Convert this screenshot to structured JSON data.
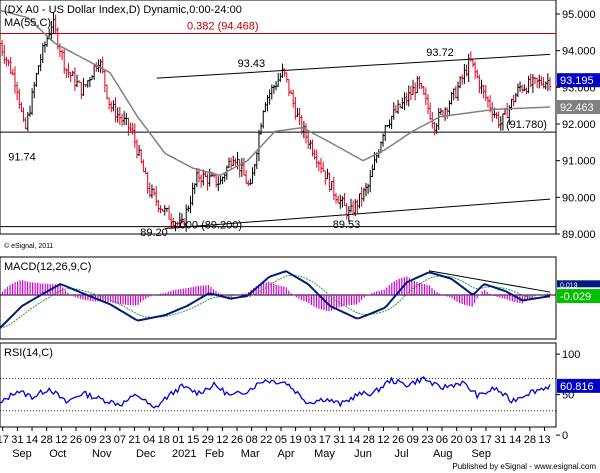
{
  "chart_data": [
    {
      "type": "candlestick",
      "panel": "price",
      "title": "(DX A0 - US Dollar Index,D) Dynamic,0:00-24:00",
      "indicator_label": "MA(55,C)",
      "watermark": "© eSignal, 2011",
      "ylim": [
        89.0,
        95.3
      ],
      "y_ticks": [
        "95.000",
        "94.000",
        "93.000",
        "92.000",
        "91.000",
        "90.000",
        "89.000"
      ],
      "last_price": "93.195",
      "ma_value": "92.463",
      "fib_label": "0.382 (94.468)",
      "fib_level": 94.468,
      "support_label": "(91.780)",
      "support_level": 91.78,
      "base_label": "0.000 (89.200)",
      "base_level": 89.2,
      "annotations": [
        {
          "text": "93.43",
          "x": 0.457,
          "y": 93.55
        },
        {
          "text": "93.72",
          "x": 0.8,
          "y": 93.85
        },
        {
          "text": "91.74",
          "x": 0.04,
          "y": 91.0
        },
        {
          "text": "89.20",
          "x": 0.28,
          "y": 88.95
        },
        {
          "text": "89.53",
          "x": 0.63,
          "y": 89.17
        }
      ],
      "keypoints": [
        {
          "x": 0.0,
          "y": 94.2
        },
        {
          "x": 0.03,
          "y": 93.1
        },
        {
          "x": 0.045,
          "y": 91.74
        },
        {
          "x": 0.07,
          "y": 93.6
        },
        {
          "x": 0.095,
          "y": 94.8
        },
        {
          "x": 0.12,
          "y": 93.5
        },
        {
          "x": 0.15,
          "y": 92.9
        },
        {
          "x": 0.18,
          "y": 93.8
        },
        {
          "x": 0.2,
          "y": 92.5
        },
        {
          "x": 0.24,
          "y": 91.8
        },
        {
          "x": 0.27,
          "y": 90.2
        },
        {
          "x": 0.3,
          "y": 89.6
        },
        {
          "x": 0.33,
          "y": 89.2
        },
        {
          "x": 0.36,
          "y": 90.6
        },
        {
          "x": 0.4,
          "y": 90.4
        },
        {
          "x": 0.425,
          "y": 91.2
        },
        {
          "x": 0.455,
          "y": 90.2
        },
        {
          "x": 0.48,
          "y": 92.6
        },
        {
          "x": 0.515,
          "y": 93.43
        },
        {
          "x": 0.545,
          "y": 92.0
        },
        {
          "x": 0.58,
          "y": 91.0
        },
        {
          "x": 0.605,
          "y": 90.2
        },
        {
          "x": 0.635,
          "y": 89.53
        },
        {
          "x": 0.67,
          "y": 90.3
        },
        {
          "x": 0.7,
          "y": 92.0
        },
        {
          "x": 0.73,
          "y": 92.5
        },
        {
          "x": 0.76,
          "y": 93.1
        },
        {
          "x": 0.79,
          "y": 92.0
        },
        {
          "x": 0.83,
          "y": 92.9
        },
        {
          "x": 0.855,
          "y": 93.72
        },
        {
          "x": 0.88,
          "y": 92.8
        },
        {
          "x": 0.91,
          "y": 92.0
        },
        {
          "x": 0.945,
          "y": 93.0
        },
        {
          "x": 1.0,
          "y": 93.195
        }
      ],
      "ma_keypoints": [
        {
          "x": 0.0,
          "y": 95.1
        },
        {
          "x": 0.05,
          "y": 94.9
        },
        {
          "x": 0.1,
          "y": 94.2
        },
        {
          "x": 0.2,
          "y": 93.4
        },
        {
          "x": 0.25,
          "y": 92.2
        },
        {
          "x": 0.3,
          "y": 91.2
        },
        {
          "x": 0.35,
          "y": 90.8
        },
        {
          "x": 0.4,
          "y": 90.6
        },
        {
          "x": 0.45,
          "y": 91.0
        },
        {
          "x": 0.5,
          "y": 91.8
        },
        {
          "x": 0.55,
          "y": 91.9
        },
        {
          "x": 0.6,
          "y": 91.5
        },
        {
          "x": 0.66,
          "y": 91.0
        },
        {
          "x": 0.7,
          "y": 91.3
        },
        {
          "x": 0.75,
          "y": 91.8
        },
        {
          "x": 0.8,
          "y": 92.2
        },
        {
          "x": 0.85,
          "y": 92.3
        },
        {
          "x": 0.9,
          "y": 92.4
        },
        {
          "x": 1.0,
          "y": 92.463
        }
      ],
      "trendlines": [
        {
          "x1": 0.285,
          "y1": 93.25,
          "x2": 1.0,
          "y2": 93.9
        },
        {
          "x1": 0.3,
          "y1": 89.15,
          "x2": 1.0,
          "y2": 89.95
        }
      ]
    },
    {
      "type": "line",
      "panel": "macd",
      "title": "MACD(12,26,9,C)",
      "ylim": [
        -1.2,
        0.9
      ],
      "last_value": "-0.029",
      "signal_value": "0.019",
      "zero_line": 0,
      "keypoints": [
        {
          "x": 0.0,
          "y": -0.9
        },
        {
          "x": 0.04,
          "y": -0.3
        },
        {
          "x": 0.08,
          "y": 0.05
        },
        {
          "x": 0.11,
          "y": 0.3
        },
        {
          "x": 0.15,
          "y": 0.05
        },
        {
          "x": 0.2,
          "y": -0.25
        },
        {
          "x": 0.25,
          "y": -0.7
        },
        {
          "x": 0.3,
          "y": -0.55
        },
        {
          "x": 0.34,
          "y": -0.3
        },
        {
          "x": 0.38,
          "y": 0.05
        },
        {
          "x": 0.42,
          "y": -0.1
        },
        {
          "x": 0.45,
          "y": -0.02
        },
        {
          "x": 0.49,
          "y": 0.5
        },
        {
          "x": 0.52,
          "y": 0.65
        },
        {
          "x": 0.56,
          "y": 0.3
        },
        {
          "x": 0.6,
          "y": -0.3
        },
        {
          "x": 0.65,
          "y": -0.65
        },
        {
          "x": 0.7,
          "y": -0.35
        },
        {
          "x": 0.74,
          "y": 0.35
        },
        {
          "x": 0.78,
          "y": 0.62
        },
        {
          "x": 0.82,
          "y": 0.45
        },
        {
          "x": 0.86,
          "y": 0.0
        },
        {
          "x": 0.88,
          "y": 0.3
        },
        {
          "x": 0.92,
          "y": 0.1
        },
        {
          "x": 0.95,
          "y": -0.15
        },
        {
          "x": 1.0,
          "y": -0.029
        }
      ],
      "trendline": {
        "x1": 0.78,
        "y1": 0.66,
        "x2": 1.0,
        "y2": 0.08
      }
    },
    {
      "type": "line",
      "panel": "rsi",
      "title": "RSI(14,C)",
      "ylim": [
        10,
        110
      ],
      "y_ticks": [
        "100",
        "50",
        "0"
      ],
      "last_value": "60.816",
      "levels": [
        70,
        30
      ],
      "keypoints": [
        {
          "x": 0.0,
          "y": 38
        },
        {
          "x": 0.03,
          "y": 55
        },
        {
          "x": 0.06,
          "y": 47
        },
        {
          "x": 0.09,
          "y": 58
        },
        {
          "x": 0.12,
          "y": 40
        },
        {
          "x": 0.15,
          "y": 52
        },
        {
          "x": 0.18,
          "y": 45
        },
        {
          "x": 0.22,
          "y": 38
        },
        {
          "x": 0.25,
          "y": 50
        },
        {
          "x": 0.28,
          "y": 32
        },
        {
          "x": 0.3,
          "y": 45
        },
        {
          "x": 0.33,
          "y": 60
        },
        {
          "x": 0.36,
          "y": 52
        },
        {
          "x": 0.39,
          "y": 62
        },
        {
          "x": 0.42,
          "y": 48
        },
        {
          "x": 0.45,
          "y": 55
        },
        {
          "x": 0.48,
          "y": 68
        },
        {
          "x": 0.52,
          "y": 65
        },
        {
          "x": 0.56,
          "y": 40
        },
        {
          "x": 0.59,
          "y": 45
        },
        {
          "x": 0.62,
          "y": 38
        },
        {
          "x": 0.65,
          "y": 50
        },
        {
          "x": 0.68,
          "y": 52
        },
        {
          "x": 0.71,
          "y": 68
        },
        {
          "x": 0.74,
          "y": 62
        },
        {
          "x": 0.77,
          "y": 70
        },
        {
          "x": 0.8,
          "y": 58
        },
        {
          "x": 0.84,
          "y": 65
        },
        {
          "x": 0.87,
          "y": 48
        },
        {
          "x": 0.9,
          "y": 58
        },
        {
          "x": 0.93,
          "y": 42
        },
        {
          "x": 0.96,
          "y": 52
        },
        {
          "x": 1.0,
          "y": 60.8
        }
      ]
    }
  ],
  "x_axis": {
    "day_labels": [
      "17",
      "31",
      "14",
      "28",
      "12",
      "26",
      "09",
      "23",
      "07",
      "21",
      "04",
      "18",
      "01",
      "15",
      "29",
      "12",
      "26",
      "08",
      "22",
      "05",
      "19",
      "03",
      "17",
      "31",
      "14",
      "28",
      "12",
      "26",
      "09",
      "23",
      "06",
      "20",
      "03",
      "17",
      "31",
      "14",
      "28",
      "13"
    ],
    "month_labels": [
      "Sep",
      "Oct",
      "Nov",
      "Dec",
      "2021",
      "Feb",
      "Mar",
      "Apr",
      "May",
      "Jun",
      "Jul",
      "Aug",
      "Sep"
    ],
    "month_x": [
      0.04,
      0.105,
      0.185,
      0.265,
      0.335,
      0.39,
      0.455,
      0.52,
      0.59,
      0.66,
      0.73,
      0.805,
      0.875
    ]
  },
  "footer": {
    "published": "Published by eSignal - www.esignal.com"
  },
  "colors": {
    "up_candle": "#000000",
    "down_candle": "#e0001b",
    "ma": "#808080",
    "fib": "#c00000",
    "macd_line": "#001a80",
    "macd_signal": "#2a9a3a",
    "macd_hist": "#d000d0",
    "rsi": "#0000d8",
    "last_price_box": "#0000c0",
    "ma_box": "#808080",
    "macd_box": "#00c000",
    "rsi_box": "#0000c0"
  }
}
